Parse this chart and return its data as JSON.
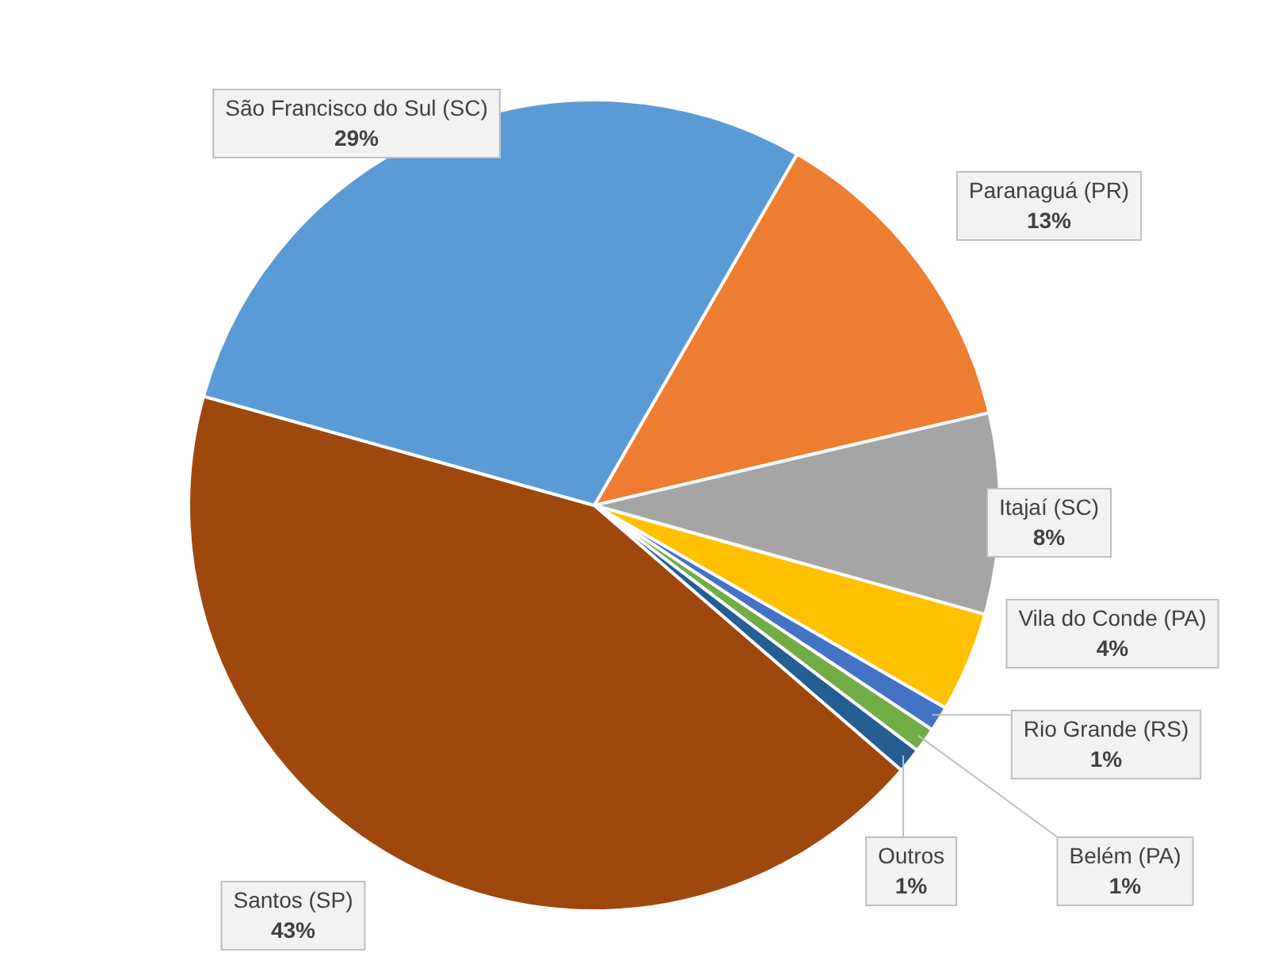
{
  "chart_data": {
    "type": "pie",
    "categories": [
      "Paranaguá (PR)",
      "Itajaí (SC)",
      "Vila do Conde (PA)",
      "Rio Grande (RS)",
      "Belém (PA)",
      "Outros",
      "Santos (SP)",
      "São Francisco do Sul (SC)"
    ],
    "values": [
      13,
      8,
      4,
      1,
      1,
      1,
      43,
      29
    ],
    "colors": [
      "#ed7d31",
      "#a5a5a5",
      "#ffc000",
      "#4472c4",
      "#70ad47",
      "#255e91",
      "#9e480e",
      "#5b9bd5"
    ],
    "value_labels": [
      "13%",
      "8%",
      "4%",
      "1%",
      "1%",
      "1%",
      "43%",
      "29%"
    ],
    "legend": false
  }
}
